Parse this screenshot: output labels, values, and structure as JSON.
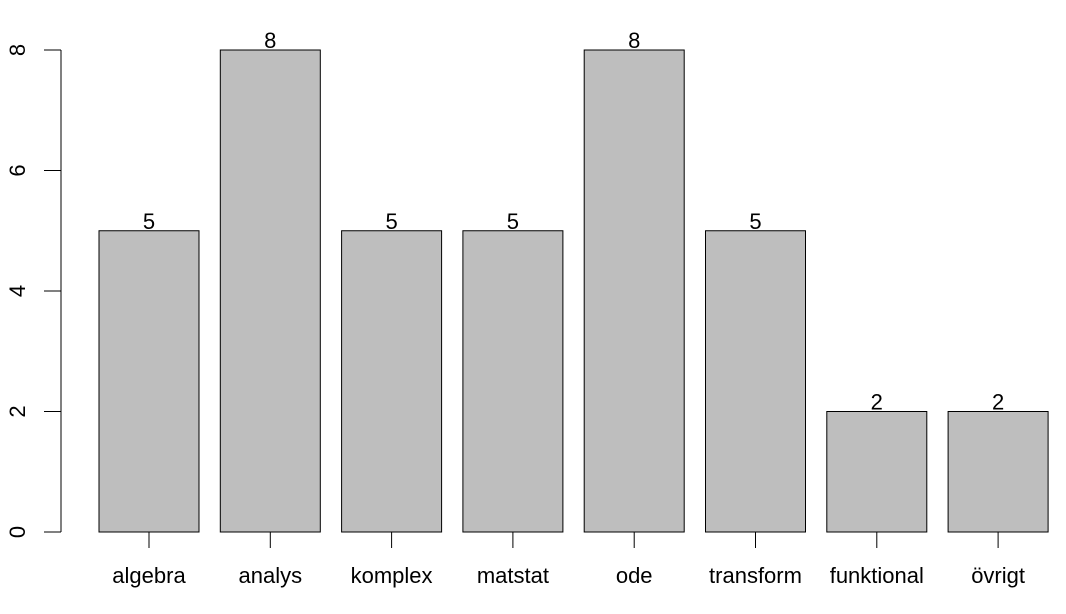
{
  "chart_data": {
    "type": "bar",
    "title": "",
    "xlabel": "",
    "ylabel": "",
    "categories": [
      "algebra",
      "analys",
      "komplex",
      "matstat",
      "ode",
      "transform",
      "funktional",
      "övrigt"
    ],
    "values": [
      5,
      8,
      5,
      5,
      8,
      5,
      2,
      2
    ],
    "value_labels": [
      "5",
      "8",
      "5",
      "5",
      "8",
      "5",
      "2",
      "2"
    ],
    "ylim": [
      0,
      8
    ],
    "yticks": [
      0,
      2,
      4,
      6,
      8
    ],
    "ytick_labels": [
      "0",
      "2",
      "4",
      "6",
      "8"
    ],
    "grid": false,
    "legend": "none",
    "bar_color": "#bebebe",
    "bar_edge_color": "#000000"
  }
}
